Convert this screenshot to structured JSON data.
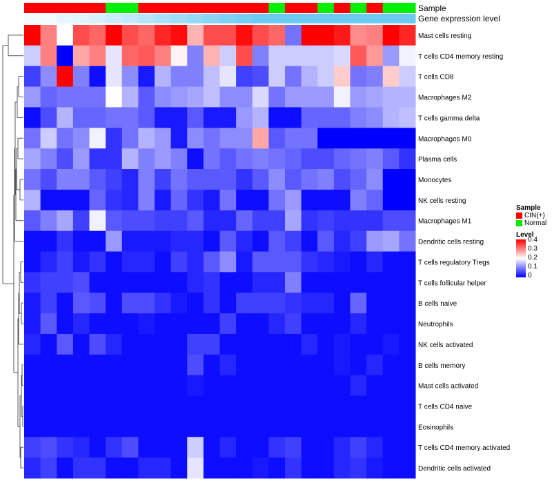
{
  "chart_data": {
    "type": "heatmap",
    "annotations": {
      "sample_label": "Sample",
      "expression_label": "Gene expression level"
    },
    "columns_sample": [
      "CIN(+)",
      "CIN(+)",
      "CIN(+)",
      "CIN(+)",
      "CIN(+)",
      "Normal",
      "Normal",
      "CIN(+)",
      "CIN(+)",
      "CIN(+)",
      "CIN(+)",
      "CIN(+)",
      "CIN(+)",
      "CIN(+)",
      "CIN(+)",
      "Normal",
      "CIN(+)",
      "CIN(+)",
      "Normal",
      "CIN(+)",
      "Normal",
      "CIN(+)",
      "Normal",
      "Normal"
    ],
    "columns_expression": [
      0.0,
      0.0,
      0.02,
      0.03,
      0.05,
      0.07,
      0.09,
      0.11,
      0.13,
      0.15,
      0.17,
      0.19,
      0.21,
      0.23,
      0.25,
      0.27,
      0.29,
      0.31,
      0.33,
      0.35,
      0.36,
      0.37,
      0.38,
      0.39
    ],
    "rows": [
      {
        "name": "Mast cells resting",
        "values": [
          0.4,
          0.3,
          0.2,
          0.34,
          0.32,
          0.4,
          0.34,
          0.32,
          0.37,
          0.39,
          0.26,
          0.34,
          0.34,
          0.39,
          0.34,
          0.32,
          0.09,
          0.4,
          0.4,
          0.38,
          0.29,
          0.3,
          0.4,
          0.37
        ]
      },
      {
        "name": "T cells CD4 memory resting",
        "values": [
          0.16,
          0.3,
          0.0,
          0.27,
          0.3,
          0.18,
          0.32,
          0.33,
          0.3,
          0.21,
          0.1,
          0.26,
          0.16,
          0.34,
          0.1,
          0.16,
          0.16,
          0.16,
          0.16,
          0.17,
          0.33,
          0.28,
          0.12,
          0.19
        ]
      },
      {
        "name": "T cells CD8",
        "values": [
          0.05,
          0.11,
          0.4,
          0.1,
          0.01,
          0.18,
          0.11,
          0.02,
          0.14,
          0.1,
          0.1,
          0.15,
          0.18,
          0.05,
          0.06,
          0.16,
          0.09,
          0.14,
          0.16,
          0.24,
          0.09,
          0.1,
          0.24,
          0.16
        ]
      },
      {
        "name": "Macrophages M2",
        "values": [
          0.12,
          0.08,
          0.09,
          0.09,
          0.09,
          0.2,
          0.14,
          0.07,
          0.11,
          0.12,
          0.13,
          0.15,
          0.11,
          0.11,
          0.17,
          0.09,
          0.12,
          0.12,
          0.12,
          0.19,
          0.12,
          0.13,
          0.14,
          0.14
        ]
      },
      {
        "name": "T cells gamma delta",
        "values": [
          0.01,
          0.06,
          0.14,
          0.08,
          0.08,
          0.09,
          0.09,
          0.07,
          0.02,
          0.02,
          0.07,
          0.02,
          0.02,
          0.12,
          0.14,
          0.01,
          0.01,
          0.08,
          0.08,
          0.08,
          0.1,
          0.11,
          0.14,
          0.15
        ]
      },
      {
        "name": "Macrophages M0",
        "values": [
          0.09,
          0.16,
          0.09,
          0.11,
          0.19,
          0.04,
          0.09,
          0.14,
          0.12,
          0.02,
          0.11,
          0.09,
          0.11,
          0.11,
          0.27,
          0.07,
          0.09,
          0.09,
          0.0,
          0.0,
          0.0,
          0.0,
          0.0,
          0.0
        ]
      },
      {
        "name": "Plasma cells",
        "values": [
          0.13,
          0.1,
          0.06,
          0.12,
          0.04,
          0.04,
          0.14,
          0.1,
          0.12,
          0.1,
          0.01,
          0.09,
          0.07,
          0.09,
          0.1,
          0.09,
          0.08,
          0.06,
          0.06,
          0.08,
          0.09,
          0.1,
          0.07,
          0.04
        ]
      },
      {
        "name": "Monocytes",
        "values": [
          0.09,
          0.06,
          0.1,
          0.1,
          0.07,
          0.05,
          0.03,
          0.1,
          0.05,
          0.09,
          0.07,
          0.07,
          0.07,
          0.04,
          0.07,
          0.11,
          0.07,
          0.09,
          0.1,
          0.06,
          0.08,
          0.11,
          0.0,
          0.0
        ]
      },
      {
        "name": "NK cells resting",
        "values": [
          0.14,
          0.01,
          0.01,
          0.01,
          0.08,
          0.04,
          0.03,
          0.1,
          0.02,
          0.08,
          0.04,
          0.02,
          0.09,
          0.01,
          0.01,
          0.09,
          0.12,
          0.01,
          0.01,
          0.01,
          0.1,
          0.08,
          0.0,
          0.0
        ]
      },
      {
        "name": "Macrophages M1",
        "values": [
          0.07,
          0.1,
          0.13,
          0.05,
          0.19,
          0.07,
          0.06,
          0.06,
          0.05,
          0.05,
          0.07,
          0.03,
          0.03,
          0.08,
          0.05,
          0.05,
          0.13,
          0.04,
          0.05,
          0.04,
          0.04,
          0.04,
          0.06,
          0.06
        ]
      },
      {
        "name": "Dendritic cells resting",
        "values": [
          0.01,
          0.01,
          0.04,
          0.01,
          0.01,
          0.12,
          0.02,
          0.02,
          0.02,
          0.03,
          0.03,
          0.01,
          0.07,
          0.03,
          0.01,
          0.07,
          0.05,
          0.01,
          0.07,
          0.03,
          0.05,
          0.12,
          0.13,
          0.09
        ]
      },
      {
        "name": "T cells regulatory  Tregs",
        "values": [
          0.01,
          0.03,
          0.05,
          0.02,
          0.04,
          0.01,
          0.03,
          0.03,
          0.01,
          0.05,
          0.03,
          0.07,
          0.11,
          0.02,
          0.07,
          0.07,
          0.07,
          0.04,
          0.03,
          0.02,
          0.01,
          0.03,
          0.01,
          0.01
        ]
      },
      {
        "name": "T cells follicular helper",
        "values": [
          0.04,
          0.05,
          0.05,
          0.06,
          0.01,
          0.01,
          0.01,
          0.01,
          0.01,
          0.01,
          0.03,
          0.04,
          0.01,
          0.01,
          0.03,
          0.03,
          0.1,
          0.01,
          0.01,
          0.01,
          0.01,
          0.01,
          0.01,
          0.01
        ]
      },
      {
        "name": "B cells naive",
        "values": [
          0.02,
          0.05,
          0.01,
          0.07,
          0.06,
          0.01,
          0.06,
          0.06,
          0.04,
          0.02,
          0.01,
          0.04,
          0.01,
          0.05,
          0.05,
          0.05,
          0.04,
          0.03,
          0.03,
          0.01,
          0.08,
          0.01,
          0.01,
          0.01
        ]
      },
      {
        "name": "Neutrophils",
        "values": [
          0.02,
          0.07,
          0.01,
          0.03,
          0.01,
          0.01,
          0.01,
          0.02,
          0.01,
          0.01,
          0.01,
          0.01,
          0.05,
          0.01,
          0.01,
          0.03,
          0.05,
          0.01,
          0.01,
          0.01,
          0.03,
          0.01,
          0.01,
          0.01
        ]
      },
      {
        "name": "NK cells activated",
        "values": [
          0.03,
          0.01,
          0.07,
          0.01,
          0.06,
          0.03,
          0.01,
          0.01,
          0.01,
          0.01,
          0.05,
          0.05,
          0.01,
          0.01,
          0.01,
          0.01,
          0.01,
          0.03,
          0.01,
          0.02,
          0.01,
          0.01,
          0.02,
          0.01
        ]
      },
      {
        "name": "B cells memory",
        "values": [
          0.01,
          0.01,
          0.01,
          0.01,
          0.01,
          0.01,
          0.01,
          0.01,
          0.01,
          0.01,
          0.06,
          0.01,
          0.03,
          0.01,
          0.01,
          0.01,
          0.01,
          0.01,
          0.01,
          0.02,
          0.01,
          0.03,
          0.01,
          0.01
        ]
      },
      {
        "name": "Mast cells activated",
        "values": [
          0.01,
          0.01,
          0.01,
          0.01,
          0.01,
          0.01,
          0.01,
          0.01,
          0.01,
          0.01,
          0.02,
          0.01,
          0.01,
          0.01,
          0.01,
          0.01,
          0.01,
          0.01,
          0.01,
          0.01,
          0.03,
          0.01,
          0.01,
          0.01
        ]
      },
      {
        "name": "T cells CD4 naive",
        "values": [
          0.01,
          0.01,
          0.01,
          0.01,
          0.01,
          0.01,
          0.01,
          0.01,
          0.01,
          0.01,
          0.01,
          0.01,
          0.01,
          0.01,
          0.01,
          0.01,
          0.01,
          0.01,
          0.01,
          0.01,
          0.01,
          0.01,
          0.01,
          0.01
        ]
      },
      {
        "name": "Eosinophils",
        "values": [
          0.01,
          0.01,
          0.01,
          0.01,
          0.01,
          0.01,
          0.01,
          0.01,
          0.01,
          0.01,
          0.01,
          0.01,
          0.01,
          0.01,
          0.01,
          0.01,
          0.01,
          0.01,
          0.01,
          0.01,
          0.01,
          0.01,
          0.01,
          0.01
        ]
      },
      {
        "name": "T cells CD4 memory activated",
        "values": [
          0.05,
          0.06,
          0.04,
          0.03,
          0.01,
          0.04,
          0.06,
          0.01,
          0.01,
          0.01,
          0.16,
          0.01,
          0.03,
          0.01,
          0.01,
          0.04,
          0.05,
          0.01,
          0.01,
          0.03,
          0.05,
          0.03,
          0.01,
          0.01
        ]
      },
      {
        "name": "Dendritic cells activated",
        "values": [
          0.03,
          0.05,
          0.01,
          0.04,
          0.04,
          0.01,
          0.01,
          0.03,
          0.03,
          0.01,
          0.18,
          0.01,
          0.01,
          0.01,
          0.02,
          0.01,
          0.04,
          0.01,
          0.01,
          0.03,
          0.04,
          0.02,
          0.01,
          0.01
        ]
      }
    ],
    "legend": {
      "sample_title": "Sample",
      "sample_entries": [
        {
          "label": "CIN(+)",
          "color": "#ff0000"
        },
        {
          "label": "Normal",
          "color": "#00ee00"
        }
      ],
      "level_title": "Level",
      "level_ticks": [
        "0.4",
        "0.3",
        "0.2",
        "0.1",
        "0"
      ],
      "level_range": [
        0,
        0.4
      ],
      "level_colors": [
        "#0000ff",
        "#ffffff",
        "#ff0000"
      ]
    }
  }
}
